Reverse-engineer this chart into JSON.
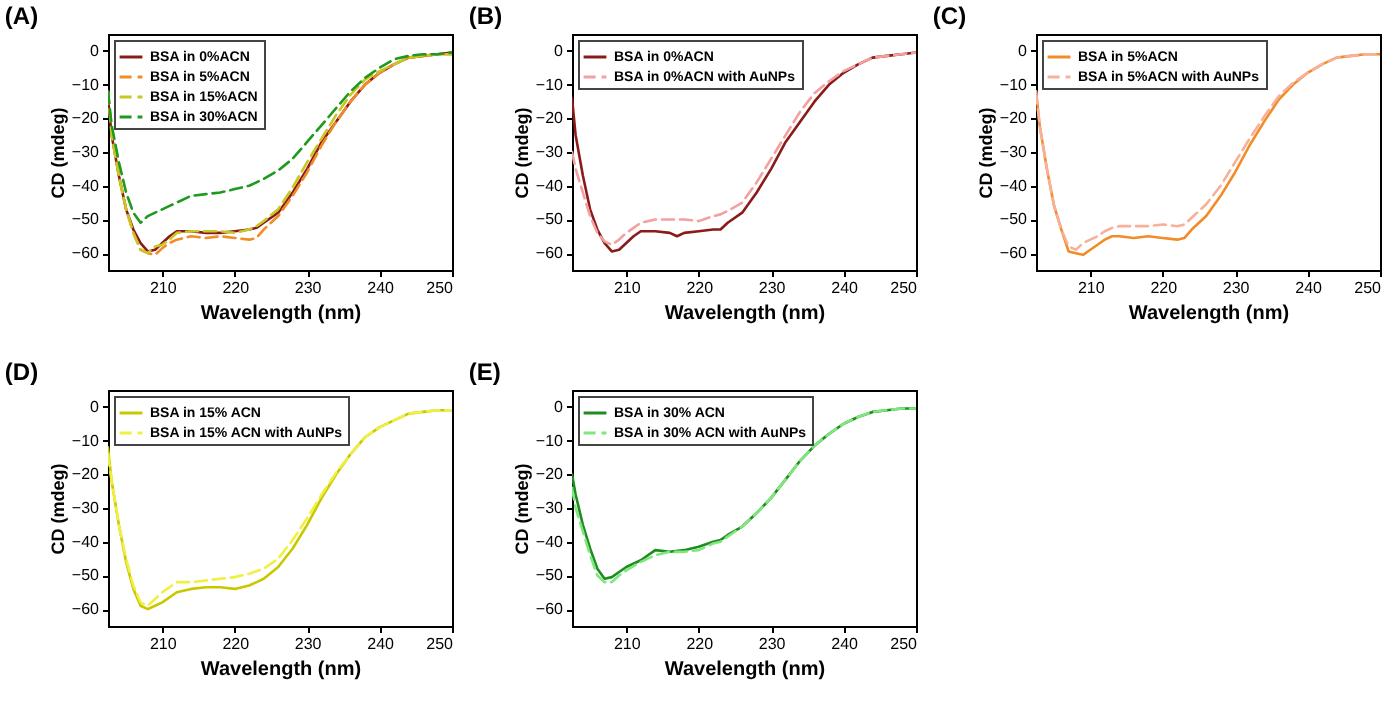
{
  "chart_data": [
    {
      "type": "line",
      "title": "(A)",
      "xlabel": "Wavelength (nm)",
      "ylabel": "CD (mdeg)",
      "xlim": [
        202.5,
        250
      ],
      "ylim": [
        -65,
        5
      ],
      "xticks": [
        210,
        220,
        230,
        240,
        250
      ],
      "yticks": [
        -60,
        -50,
        -40,
        -30,
        -20,
        -10,
        0
      ],
      "legend": "top left",
      "grid": false,
      "x": [
        202.5,
        203,
        204,
        205,
        206,
        207,
        208,
        209,
        210,
        211,
        212,
        214,
        216,
        218,
        220,
        222,
        223,
        224,
        226,
        228,
        230,
        232,
        234,
        236,
        238,
        240,
        242,
        244,
        246,
        248,
        250
      ],
      "series": [
        {
          "name": "BSA in 0%ACN",
          "color": "#8b1a1a",
          "line_style": "solid",
          "values": [
            -14,
            -25,
            -37,
            -47,
            -53,
            -57,
            -59.5,
            -59,
            -57,
            -55,
            -53.5,
            -53.5,
            -54,
            -54,
            -53.5,
            -53,
            -52.5,
            -51,
            -48,
            -42,
            -35,
            -27,
            -21,
            -15,
            -10,
            -6.5,
            -4,
            -2,
            -1.5,
            -1,
            -0.5
          ]
        },
        {
          "name": "BSA in 5%ACN",
          "color": "#f28c28",
          "line_style": "dashed",
          "values": [
            -12,
            -24,
            -37,
            -47,
            -54,
            -59,
            -60,
            -60.5,
            -58.5,
            -57,
            -56,
            -55,
            -55.5,
            -55,
            -55.5,
            -56,
            -55.5,
            -53,
            -49,
            -43,
            -36,
            -28,
            -21,
            -15,
            -10,
            -6.5,
            -4,
            -2,
            -1.5,
            -1,
            -1
          ]
        },
        {
          "name": "BSA in 15%ACN",
          "color": "#c8c820",
          "line_style": "dashed",
          "values": [
            -12,
            -25,
            -37,
            -47,
            -54,
            -59,
            -60,
            -58,
            -57.5,
            -56,
            -54,
            -53.5,
            -53.5,
            -53.5,
            -54,
            -53,
            -52,
            -50.5,
            -47,
            -40.5,
            -33,
            -26,
            -19,
            -13,
            -8.5,
            -6,
            -4,
            -2,
            -1.5,
            -1,
            -1
          ]
        },
        {
          "name": "BSA in 30%ACN",
          "color": "#1f9a1f",
          "line_style": "dashed",
          "values": [
            -12,
            -22,
            -33,
            -42,
            -48,
            -51,
            -49,
            -48,
            -47,
            -46,
            -45,
            -43,
            -42.5,
            -42,
            -41,
            -40,
            -39,
            -38,
            -35.5,
            -32,
            -27,
            -22,
            -17,
            -12,
            -8,
            -5,
            -2.5,
            -1.5,
            -1,
            -1,
            -0.5
          ]
        }
      ]
    },
    {
      "type": "line",
      "title": "(B)",
      "xlabel": "Wavelength (nm)",
      "ylabel": "CD (mdeg)",
      "xlim": [
        202.5,
        250
      ],
      "ylim": [
        -65,
        5
      ],
      "xticks": [
        210,
        220,
        230,
        240,
        250
      ],
      "yticks": [
        -60,
        -50,
        -40,
        -30,
        -20,
        -10,
        0
      ],
      "legend": "top left",
      "grid": false,
      "x": [
        202.5,
        203,
        204,
        205,
        206,
        207,
        208,
        209,
        210,
        211,
        212,
        214,
        216,
        217,
        218,
        220,
        222,
        223,
        224,
        226,
        228,
        230,
        232,
        234,
        236,
        238,
        240,
        242,
        244,
        246,
        248,
        250
      ],
      "series": [
        {
          "name": "BSA in 0%ACN",
          "color": "#8b1a1a",
          "line_style": "solid",
          "values": [
            -14,
            -25,
            -37,
            -47,
            -53,
            -57,
            -59.5,
            -59,
            -57,
            -55,
            -53.5,
            -53.5,
            -54,
            -55,
            -54,
            -53.5,
            -53,
            -53,
            -51,
            -48,
            -42,
            -35,
            -27,
            -21,
            -15,
            -10,
            -6.5,
            -4,
            -2,
            -1.5,
            -1,
            -0.5
          ]
        },
        {
          "name": "BSA in 0%ACN with AuNPs",
          "color": "#f2a0a0",
          "line_style": "dashed",
          "values": [
            -30,
            -35,
            -42,
            -49,
            -54,
            -56.5,
            -57.5,
            -56,
            -54,
            -52.5,
            -51,
            -50,
            -50,
            -50,
            -50,
            -50.5,
            -49,
            -48.5,
            -47.5,
            -45,
            -39,
            -32,
            -25,
            -18,
            -12.5,
            -9,
            -6,
            -4,
            -2,
            -1.5,
            -1,
            -0.5
          ]
        }
      ]
    },
    {
      "type": "line",
      "title": "(C)",
      "xlabel": "Wavelength (nm)",
      "ylabel": "CD (mdeg)",
      "xlim": [
        202.5,
        250
      ],
      "ylim": [
        -65,
        5
      ],
      "xticks": [
        210,
        220,
        230,
        240,
        250
      ],
      "yticks": [
        -60,
        -50,
        -40,
        -30,
        -20,
        -10,
        0
      ],
      "legend": "top left",
      "grid": false,
      "x": [
        202.5,
        203,
        204,
        205,
        206,
        207,
        208,
        209,
        210,
        211,
        212,
        213,
        214,
        216,
        218,
        220,
        222,
        223,
        224,
        226,
        228,
        230,
        232,
        234,
        236,
        238,
        240,
        242,
        244,
        246,
        248,
        250
      ],
      "series": [
        {
          "name": "BSA in 5%ACN",
          "color": "#f28c28",
          "line_style": "solid",
          "values": [
            -12,
            -22,
            -35,
            -46,
            -53,
            -59.5,
            -60,
            -60.5,
            -59,
            -57.5,
            -56,
            -55,
            -55,
            -55.5,
            -55,
            -55.5,
            -56,
            -55.5,
            -53,
            -49,
            -43,
            -36,
            -28,
            -21,
            -14.5,
            -10,
            -6.5,
            -4,
            -2,
            -1.5,
            -1,
            -1
          ]
        },
        {
          "name": "BSA in 5%ACN with AuNPs",
          "color": "#f7b09a",
          "line_style": "dashed",
          "values": [
            -12,
            -22,
            -35,
            -46,
            -53,
            -58,
            -59,
            -57,
            -56,
            -55,
            -53.5,
            -52.5,
            -52,
            -52,
            -52,
            -51.5,
            -52,
            -51.5,
            -49.5,
            -45.5,
            -40,
            -33,
            -26,
            -19.5,
            -13.5,
            -9.5,
            -6.5,
            -4,
            -2,
            -1.5,
            -1,
            -1
          ]
        }
      ]
    },
    {
      "type": "line",
      "title": "(D)",
      "xlabel": "Wavelength (nm)",
      "ylabel": "CD (mdeg)",
      "xlim": [
        202.5,
        250
      ],
      "ylim": [
        -65,
        5
      ],
      "xticks": [
        210,
        220,
        230,
        240,
        250
      ],
      "yticks": [
        -60,
        -50,
        -40,
        -30,
        -20,
        -10,
        0
      ],
      "legend": "top left",
      "grid": false,
      "x": [
        202.5,
        203,
        204,
        205,
        206,
        207,
        208,
        209,
        210,
        212,
        214,
        216,
        218,
        220,
        222,
        224,
        226,
        228,
        230,
        232,
        234,
        236,
        238,
        240,
        242,
        244,
        246,
        248,
        250
      ],
      "series": [
        {
          "name": "BSA in 15% ACN",
          "color": "#c8c800",
          "line_style": "solid",
          "values": [
            -12,
            -22,
            -35,
            -46,
            -54,
            -59,
            -60,
            -59,
            -58,
            -55,
            -54,
            -53.5,
            -53.5,
            -54,
            -53,
            -51,
            -47.5,
            -42,
            -35,
            -27,
            -20,
            -14,
            -9,
            -6,
            -4,
            -2,
            -1.5,
            -1,
            -1
          ]
        },
        {
          "name": "BSA in 15% ACN with AuNPs",
          "color": "#f0f040",
          "line_style": "dashed",
          "values": [
            -14,
            -22,
            -35,
            -45,
            -53,
            -58,
            -59,
            -57,
            -55,
            -52,
            -52,
            -51.5,
            -51,
            -50.5,
            -49.5,
            -48,
            -45,
            -39.5,
            -33,
            -26,
            -19.5,
            -14,
            -9,
            -6,
            -4,
            -2,
            -1.5,
            -1,
            -1
          ]
        }
      ]
    },
    {
      "type": "line",
      "title": "(E)",
      "xlabel": "Wavelength (nm)",
      "ylabel": "CD (mdeg)",
      "xlim": [
        202.5,
        250
      ],
      "ylim": [
        -65,
        5
      ],
      "xticks": [
        210,
        220,
        230,
        240,
        250
      ],
      "yticks": [
        -60,
        -50,
        -40,
        -30,
        -20,
        -10,
        0
      ],
      "legend": "top left",
      "grid": false,
      "x": [
        202.5,
        203,
        204,
        205,
        206,
        207,
        208,
        209,
        210,
        212,
        214,
        216,
        218,
        220,
        222,
        223,
        224,
        226,
        228,
        230,
        232,
        234,
        236,
        238,
        240,
        242,
        244,
        246,
        248,
        250
      ],
      "series": [
        {
          "name": "BSA in 30% ACN",
          "color": "#1e8c1e",
          "line_style": "solid",
          "values": [
            -20,
            -26,
            -35,
            -42,
            -48,
            -51,
            -50.5,
            -49,
            -47.5,
            -45.5,
            -42.5,
            -43,
            -42.5,
            -41.5,
            -40,
            -39.5,
            -38,
            -35.5,
            -31.5,
            -27,
            -21.5,
            -16,
            -11.5,
            -8,
            -5,
            -3,
            -1.5,
            -1,
            -0.5,
            -0.5
          ]
        },
        {
          "name": "BSA in 30% ACN with AuNPs",
          "color": "#7ee87e",
          "line_style": "dashed",
          "values": [
            -24,
            -30,
            -37,
            -44,
            -50,
            -52,
            -52,
            -50,
            -48.5,
            -46,
            -44,
            -43,
            -43,
            -42.5,
            -40.5,
            -40,
            -38.5,
            -35.5,
            -31.5,
            -27,
            -21.5,
            -16,
            -11.5,
            -8,
            -5,
            -3,
            -1.5,
            -1,
            -0.5,
            -0.5
          ]
        }
      ]
    }
  ]
}
